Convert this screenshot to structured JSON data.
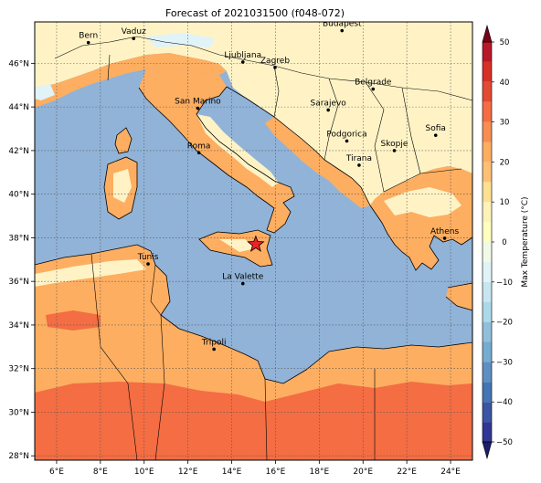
{
  "title": "Forecast of 2021031500 (f048-072)",
  "map": {
    "lon_range": [
      5,
      25
    ],
    "lat_range": [
      27.8,
      47.9
    ],
    "lon_ticks": [
      {
        "v": 6,
        "label": "6°E"
      },
      {
        "v": 8,
        "label": "8°E"
      },
      {
        "v": 10,
        "label": "10°E"
      },
      {
        "v": 12,
        "label": "12°E"
      },
      {
        "v": 14,
        "label": "14°E"
      },
      {
        "v": 16,
        "label": "16°E"
      },
      {
        "v": 18,
        "label": "18°E"
      },
      {
        "v": 20,
        "label": "20°E"
      },
      {
        "v": 22,
        "label": "22°E"
      },
      {
        "v": 24,
        "label": "24°E"
      }
    ],
    "lat_ticks": [
      {
        "v": 28,
        "label": "28°N"
      },
      {
        "v": 30,
        "label": "30°N"
      },
      {
        "v": 32,
        "label": "32°N"
      },
      {
        "v": 34,
        "label": "34°N"
      },
      {
        "v": 36,
        "label": "36°N"
      },
      {
        "v": 38,
        "label": "38°N"
      },
      {
        "v": 40,
        "label": "40°N"
      },
      {
        "v": 42,
        "label": "42°N"
      },
      {
        "v": 44,
        "label": "44°N"
      },
      {
        "v": 46,
        "label": "46°N"
      }
    ],
    "gridlines": true,
    "cities": [
      {
        "name": "Bern",
        "lon": 7.45,
        "lat": 46.95
      },
      {
        "name": "Vaduz",
        "lon": 9.52,
        "lat": 47.14
      },
      {
        "name": "Budapest",
        "lon": 19.04,
        "lat": 47.5
      },
      {
        "name": "Ljubljana",
        "lon": 14.51,
        "lat": 46.06
      },
      {
        "name": "Zagreb",
        "lon": 15.98,
        "lat": 45.81
      },
      {
        "name": "Belgrade",
        "lon": 20.46,
        "lat": 44.82
      },
      {
        "name": "San Marino",
        "lon": 12.45,
        "lat": 43.94
      },
      {
        "name": "Sarajevo",
        "lon": 18.41,
        "lat": 43.86
      },
      {
        "name": "Sofia",
        "lon": 23.32,
        "lat": 42.7
      },
      {
        "name": "Podgorica",
        "lon": 19.26,
        "lat": 42.44
      },
      {
        "name": "Skopje",
        "lon": 21.43,
        "lat": 42.0
      },
      {
        "name": "Roma",
        "lon": 12.5,
        "lat": 41.9
      },
      {
        "name": "Tirana",
        "lon": 19.82,
        "lat": 41.33
      },
      {
        "name": "Athens",
        "lon": 23.73,
        "lat": 37.98
      },
      {
        "name": "Tunis",
        "lon": 10.18,
        "lat": 36.8
      },
      {
        "name": "La Valette",
        "lon": 14.51,
        "lat": 35.9
      },
      {
        "name": "Tripoli",
        "lon": 13.19,
        "lat": 32.89
      }
    ],
    "event_marker": {
      "lon": 15.1,
      "lat": 37.7,
      "color": "#e8232a"
    }
  },
  "colorbar": {
    "label": "Max Temperature (°C)",
    "ticks": [
      -50,
      -40,
      -30,
      -20,
      -10,
      0,
      10,
      20,
      30,
      40,
      50
    ],
    "levels": [
      -50,
      -45,
      -40,
      -35,
      -30,
      -25,
      -20,
      -15,
      -10,
      -5,
      0,
      5,
      10,
      15,
      20,
      25,
      30,
      35,
      40,
      45,
      50
    ],
    "colors": [
      "#313695",
      "#3a55a3",
      "#4575b4",
      "#5e8fc2",
      "#74add1",
      "#91bfdb",
      "#abd9e9",
      "#c7e6f0",
      "#e0f3f8",
      "#f2f9e6",
      "#ffffbf",
      "#fef2b9",
      "#fee090",
      "#fdc076",
      "#fdae61",
      "#f88d52",
      "#f46d43",
      "#e34a33",
      "#d73027",
      "#b8192a",
      "#a50026"
    ],
    "under_color": "#1b1e6b",
    "over_color": "#7a0018"
  },
  "colors": {
    "sea": "#91b3d8",
    "land_warm": "#fdae61",
    "land_cool": "#fff3c6",
    "land_hot": "#f46d43",
    "cold_patch": "#e0f3f8"
  }
}
